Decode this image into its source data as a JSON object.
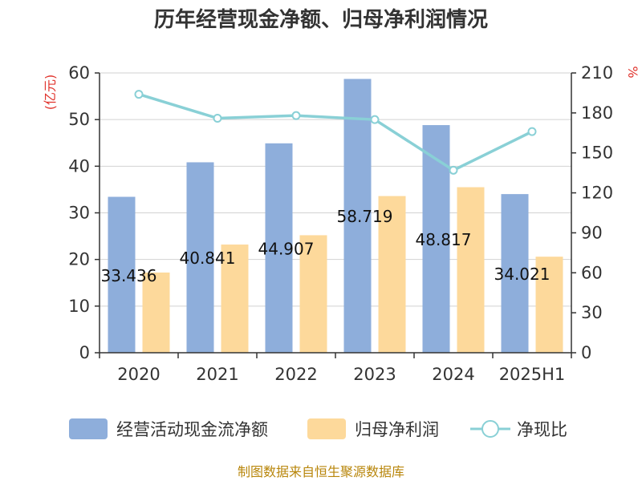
{
  "chart_data": {
    "type": "bar",
    "title": "历年经营现金净额、归母净利润情况",
    "categories": [
      "2020",
      "2021",
      "2022",
      "2023",
      "2024",
      "2025H1"
    ],
    "series": [
      {
        "name": "经营活动现金流净额",
        "type": "bar",
        "axis": "left",
        "color": "#8eaedb",
        "values": [
          33.436,
          40.841,
          44.907,
          58.719,
          48.817,
          34.021
        ],
        "labels": [
          "33.436",
          "40.841",
          "44.907",
          "58.719",
          "48.817",
          "34.021"
        ]
      },
      {
        "name": "归母净利润",
        "type": "bar",
        "axis": "left",
        "color": "#fdd99b",
        "values": [
          17.2,
          23.2,
          25.2,
          33.6,
          35.5,
          20.6
        ]
      },
      {
        "name": "净现比",
        "type": "line",
        "axis": "right",
        "color": "#89d0d6",
        "values": [
          194,
          176,
          178,
          175,
          137,
          166
        ]
      }
    ],
    "y_left": {
      "unit": "(亿元)",
      "range": [
        0,
        60
      ],
      "ticks": [
        "0",
        "10",
        "20",
        "30",
        "40",
        "50",
        "60"
      ]
    },
    "y_right": {
      "unit": "%",
      "range": [
        0,
        210
      ],
      "ticks": [
        "0",
        "30",
        "60",
        "90",
        "120",
        "150",
        "180",
        "210"
      ]
    },
    "grid": true,
    "legend_position": "bottom"
  },
  "source_note": "制图数据来自恒生聚源数据库"
}
